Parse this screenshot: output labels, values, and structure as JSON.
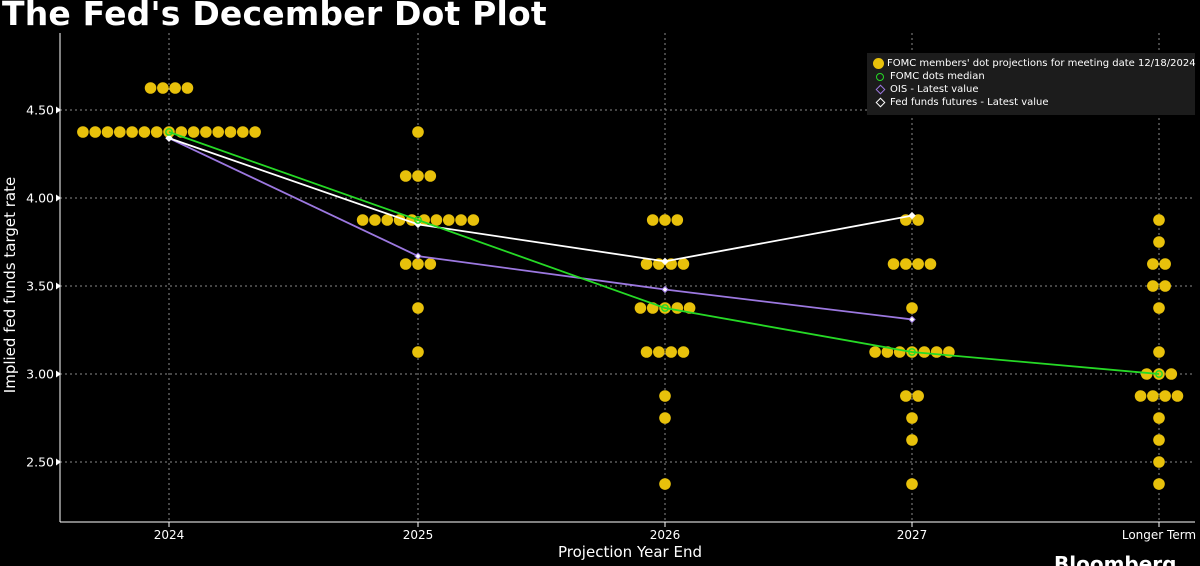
{
  "title": "The Fed's December Dot Plot",
  "source": "Bloomberg",
  "chart_data": {
    "type": "scatter",
    "title": "The Fed's December Dot Plot",
    "xlabel": "Projection Year End",
    "ylabel": "Implied fed funds target rate",
    "categories": [
      "2024",
      "2025",
      "2026",
      "2027",
      "Longer Term"
    ],
    "yticks": [
      "2.50",
      "3.00",
      "3.50",
      "4.00",
      "4.50"
    ],
    "ylim": [
      2.15,
      4.85
    ],
    "grid": true,
    "legend_position": "top-right",
    "colors": {
      "dots": "#e8c10b",
      "median": "#26d926",
      "ois": "#9c78e0",
      "futures": "#ffffff",
      "grid": "#8a8a8a",
      "axis": "#ffffff"
    },
    "series": [
      {
        "name": "FOMC members' dot projections for meeting date 12/18/2024",
        "type": "dots",
        "groups": [
          {
            "category": "2024",
            "levels": [
              {
                "rate": 4.625,
                "count": 4
              },
              {
                "rate": 4.375,
                "count": 15
              }
            ]
          },
          {
            "category": "2025",
            "levels": [
              {
                "rate": 4.375,
                "count": 1
              },
              {
                "rate": 4.125,
                "count": 3
              },
              {
                "rate": 3.875,
                "count": 10
              },
              {
                "rate": 3.625,
                "count": 3
              },
              {
                "rate": 3.375,
                "count": 1
              },
              {
                "rate": 3.125,
                "count": 1
              }
            ]
          },
          {
            "category": "2026",
            "levels": [
              {
                "rate": 3.875,
                "count": 3
              },
              {
                "rate": 3.625,
                "count": 4
              },
              {
                "rate": 3.375,
                "count": 5
              },
              {
                "rate": 3.125,
                "count": 4
              },
              {
                "rate": 2.875,
                "count": 1
              },
              {
                "rate": 2.75,
                "count": 1
              },
              {
                "rate": 2.375,
                "count": 1
              }
            ]
          },
          {
            "category": "2027",
            "levels": [
              {
                "rate": 3.875,
                "count": 2
              },
              {
                "rate": 3.625,
                "count": 4
              },
              {
                "rate": 3.375,
                "count": 1
              },
              {
                "rate": 3.125,
                "count": 7
              },
              {
                "rate": 2.875,
                "count": 2
              },
              {
                "rate": 2.75,
                "count": 1
              },
              {
                "rate": 2.625,
                "count": 1
              },
              {
                "rate": 2.375,
                "count": 1
              }
            ]
          },
          {
            "category": "Longer Term",
            "levels": [
              {
                "rate": 3.875,
                "count": 1
              },
              {
                "rate": 3.75,
                "count": 1
              },
              {
                "rate": 3.625,
                "count": 2
              },
              {
                "rate": 3.5,
                "count": 2
              },
              {
                "rate": 3.375,
                "count": 1
              },
              {
                "rate": 3.125,
                "count": 1
              },
              {
                "rate": 3.0,
                "count": 3
              },
              {
                "rate": 2.875,
                "count": 4
              },
              {
                "rate": 2.75,
                "count": 1
              },
              {
                "rate": 2.625,
                "count": 1
              },
              {
                "rate": 2.5,
                "count": 1
              },
              {
                "rate": 2.375,
                "count": 1
              }
            ]
          }
        ]
      },
      {
        "name": "FOMC dots median",
        "type": "line-circle",
        "points": [
          {
            "category": "2024",
            "value": 4.375
          },
          {
            "category": "2025",
            "value": 3.875
          },
          {
            "category": "2026",
            "value": 3.375
          },
          {
            "category": "2027",
            "value": 3.125
          },
          {
            "category": "Longer Term",
            "value": 3.0
          }
        ]
      },
      {
        "name": "OIS - Latest value",
        "type": "line-diamond",
        "points": [
          {
            "category": "2024",
            "value": 4.34
          },
          {
            "category": "2025",
            "value": 3.67
          },
          {
            "category": "2026",
            "value": 3.48
          },
          {
            "category": "2027",
            "value": 3.31
          }
        ]
      },
      {
        "name": "Fed funds futures - Latest value",
        "type": "line-diamond",
        "points": [
          {
            "category": "2024",
            "value": 4.34
          },
          {
            "category": "2025",
            "value": 3.85
          },
          {
            "category": "2026",
            "value": 3.64
          },
          {
            "category": "2027",
            "value": 3.9
          }
        ]
      }
    ]
  }
}
